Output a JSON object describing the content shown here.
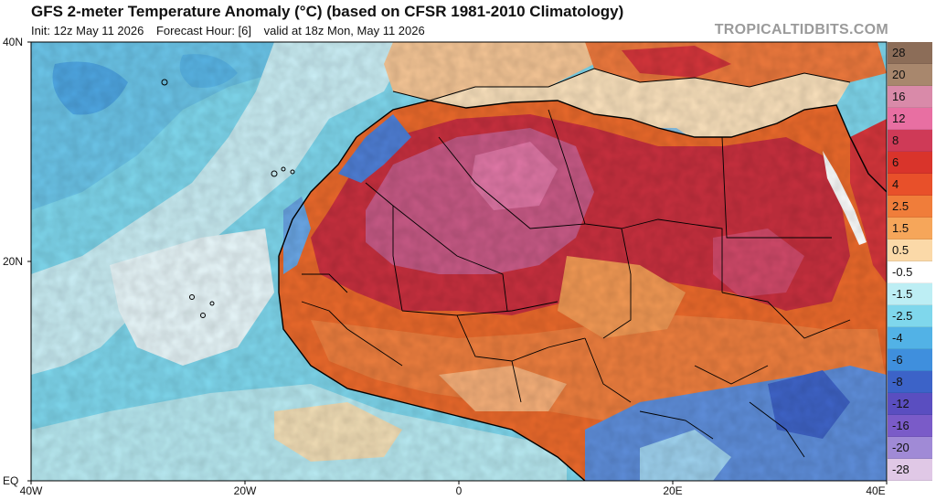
{
  "header": {
    "title": "GFS 2-meter Temperature Anomaly (°C) (based on CFSR 1981-2010 Climatology)",
    "init": "Init: 12z May 11 2026",
    "forecast_hour": "Forecast Hour: [6]",
    "valid": "valid at 18z Mon, May 11 2026",
    "brand": "TROPICALTIDBITS.COM"
  },
  "axes": {
    "lat_labels": [
      "40N",
      "20N",
      "EQ"
    ],
    "lon_labels": [
      "40W",
      "20W",
      "0",
      "20E",
      "40E"
    ]
  },
  "colorbar": {
    "labels": [
      "28",
      "20",
      "16",
      "12",
      "8",
      "6",
      "4",
      "2.5",
      "1.5",
      "0.5",
      "-0.5",
      "-1.5",
      "-2.5",
      "-4",
      "-6",
      "-8",
      "-12",
      "-16",
      "-20",
      "-28"
    ],
    "colors": [
      "#8c6d58",
      "#a8876d",
      "#d98aa9",
      "#e86fa2",
      "#cf3a57",
      "#d9342b",
      "#e8502a",
      "#f07d3a",
      "#f6a65a",
      "#fbd9a8",
      "#ffffff",
      "#bdeef4",
      "#7fd7ec",
      "#52b2e6",
      "#3f8fdd",
      "#3c63c8",
      "#5a4ec0",
      "#7a5bc8",
      "#a08ad6",
      "#e0c8e6"
    ]
  },
  "map_colors": {
    "ocean_cool": "#7fd8ee",
    "ocean_pale": "#cbeff6",
    "ocean_blue": "#4fa8e4",
    "land_hot": "#c9303f",
    "land_very_hot": "#c85a86",
    "land_warm": "#ec6a2c",
    "land_mild": "#f7b07a",
    "land_cool": "#5f8fdc",
    "border": "#000000"
  }
}
